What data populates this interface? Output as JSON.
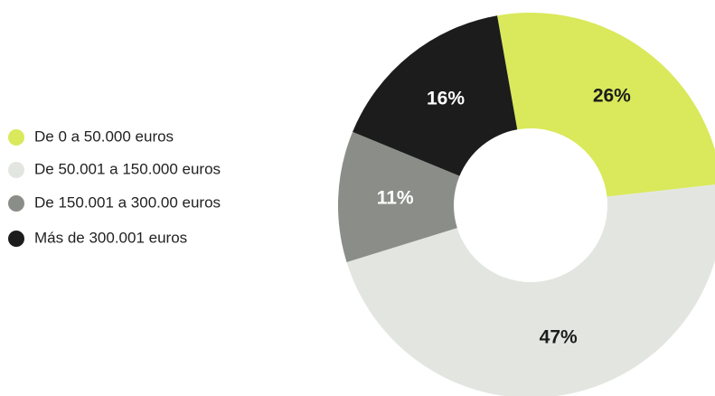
{
  "chart_data": {
    "type": "donut",
    "categories": [
      "De 0 a 50.000 euros",
      "De 50.001 a 150.000 euros",
      "De 150.001 a 300.00 euros",
      "Más de 300.001 euros"
    ],
    "values": [
      26,
      47,
      11,
      16
    ],
    "value_labels": [
      "26%",
      "47%",
      "11%",
      "16%"
    ],
    "colors": [
      "#d9e95b",
      "#e3e6e0",
      "#8b8e88",
      "#1c1c1c"
    ],
    "legend": "left"
  }
}
